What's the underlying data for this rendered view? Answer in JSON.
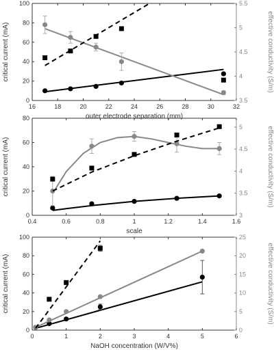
{
  "chart_data": [
    {
      "type": "scatter",
      "xlabel": "outer electrode separation (mm)",
      "ylabel_left": "critical current (mA)",
      "ylabel_right": "effective conductivity (S/m)",
      "xlim": [
        16,
        32
      ],
      "ylim_left": [
        0,
        100
      ],
      "ylim_right": [
        3.5,
        5.5
      ],
      "xticks": [
        "16",
        "18",
        "20",
        "22",
        "24",
        "26",
        "28",
        "30",
        "32"
      ],
      "yticks_left": [
        "0",
        "20",
        "40",
        "60",
        "80",
        "100"
      ],
      "yticks_right": [
        "3.5",
        "4",
        "4.5",
        "5",
        "5.5"
      ],
      "grid": false,
      "series": [
        {
          "axis": "left",
          "marker": "circle",
          "color": "#000000",
          "fit": "linear",
          "fit_style": "solid",
          "x": [
            17,
            19,
            21,
            23,
            31
          ],
          "y": [
            10,
            12,
            14.5,
            18,
            27.5
          ],
          "err": [
            1,
            1,
            1,
            1,
            1
          ],
          "fit_x": [
            17,
            31
          ],
          "fit_y": [
            9,
            32
          ]
        },
        {
          "axis": "left",
          "marker": "circle",
          "color": "#888888",
          "fit": "linear",
          "fit_style": "solid",
          "x": [
            17,
            19,
            21,
            23,
            31
          ],
          "y": [
            78,
            65,
            55,
            40,
            8
          ],
          "err": [
            9,
            6,
            4,
            9,
            2
          ],
          "fit_x": [
            17,
            31
          ],
          "fit_y": [
            74,
            6
          ]
        },
        {
          "axis": "right",
          "marker": "square",
          "color": "#000000",
          "fit": "linear",
          "fit_style": "dashed",
          "x": [
            17,
            19,
            21,
            23,
            31
          ],
          "y": [
            4.38,
            4.52,
            4.82,
            4.98,
            3.92
          ],
          "fit_x": [
            17,
            25.2
          ],
          "fit_y": [
            4.22,
            5.5
          ]
        }
      ]
    },
    {
      "type": "scatter",
      "xlabel": "scale",
      "ylabel_left": "critical current (mA)",
      "ylabel_right": "effective conductivity (S/m)",
      "xlim": [
        0.4,
        1.6
      ],
      "ylim_left": [
        0,
        80
      ],
      "ylim_right": [
        3,
        5.2
      ],
      "xticks": [
        "0.4",
        "0.6",
        "0.8",
        "1",
        "1.2",
        "1.4",
        "1.6"
      ],
      "yticks_left": [
        "0",
        "20",
        "40",
        "60",
        "80"
      ],
      "yticks_right": [
        "3",
        "3.5",
        "4",
        "4.5",
        "5"
      ],
      "grid": false,
      "series": [
        {
          "axis": "left",
          "marker": "circle",
          "color": "#000000",
          "fit": "curve",
          "fit_style": "solid",
          "x": [
            0.52,
            0.75,
            1.0,
            1.25,
            1.5
          ],
          "y": [
            6,
            9.5,
            11.5,
            14,
            16
          ],
          "err": [
            1,
            1,
            1,
            1,
            1
          ],
          "fit_x": [
            0.52,
            0.6,
            0.75,
            1.0,
            1.25,
            1.5
          ],
          "fit_y": [
            4,
            5.5,
            8,
            11.5,
            14,
            16
          ]
        },
        {
          "axis": "left",
          "marker": "circle",
          "color": "#888888",
          "fit": "curve",
          "fit_style": "solid",
          "x": [
            0.52,
            0.75,
            1.0,
            1.25,
            1.5
          ],
          "y": [
            20,
            57,
            65,
            59,
            55
          ],
          "err": [
            12,
            6,
            4,
            7,
            5
          ],
          "fit_x": [
            0.52,
            0.6,
            0.7,
            0.8,
            0.9,
            1.0,
            1.1,
            1.2,
            1.3,
            1.4,
            1.5
          ],
          "fit_y": [
            18,
            36,
            51,
            60,
            64,
            65,
            63,
            60,
            57,
            55,
            55
          ]
        },
        {
          "axis": "right",
          "marker": "square",
          "color": "#000000",
          "fit": "curve",
          "fit_style": "dashed",
          "x": [
            0.52,
            0.75,
            1.0,
            1.25,
            1.5
          ],
          "y": [
            3.82,
            4.07,
            4.38,
            4.82,
            5.01
          ],
          "fit_x": [
            0.52,
            0.75,
            1.0,
            1.25,
            1.5
          ],
          "fit_y": [
            3.55,
            3.98,
            4.35,
            4.68,
            4.98
          ]
        }
      ]
    },
    {
      "type": "scatter",
      "xlabel": "NaOH concentration (W/V%)",
      "ylabel_left": "critical current (mA)",
      "ylabel_right": "effective conductivity (S/m)",
      "xlim": [
        0,
        6
      ],
      "ylim_left": [
        0,
        100
      ],
      "ylim_right": [
        0,
        25
      ],
      "xticks": [
        "0",
        "1",
        "2",
        "3",
        "4",
        "5",
        "6"
      ],
      "yticks_left": [
        "0",
        "20",
        "40",
        "60",
        "80",
        "100"
      ],
      "yticks_right": [
        "0",
        "5",
        "10",
        "15",
        "20",
        "25"
      ],
      "grid": false,
      "series": [
        {
          "axis": "left",
          "marker": "circle",
          "color": "#000000",
          "fit": "linear",
          "fit_style": "solid",
          "x": [
            0.1,
            0.5,
            1,
            2,
            5
          ],
          "y": [
            3,
            7,
            12,
            25,
            57
          ],
          "err": [
            1,
            1,
            1,
            3,
            18
          ],
          "fit_x": [
            0.1,
            5
          ],
          "fit_y": [
            2,
            52
          ]
        },
        {
          "axis": "left",
          "marker": "circle",
          "color": "#888888",
          "fit": "linear",
          "fit_style": "solid",
          "x": [
            0.1,
            0.5,
            1,
            2,
            5
          ],
          "y": [
            3,
            11,
            20,
            36,
            85
          ],
          "err": [
            1,
            1,
            1,
            1,
            1
          ],
          "fit_x": [
            0.1,
            5
          ],
          "fit_y": [
            3,
            85
          ]
        },
        {
          "axis": "right",
          "marker": "square",
          "color": "#000000",
          "fit": "linear",
          "fit_style": "dashed",
          "x": [
            0.5,
            1,
            2
          ],
          "y": [
            8.3,
            12.8,
            22.0
          ],
          "err": [
            0,
            0,
            0.8
          ],
          "fit_x": [
            0.1,
            2
          ],
          "fit_y": [
            0.5,
            24
          ]
        }
      ]
    }
  ]
}
